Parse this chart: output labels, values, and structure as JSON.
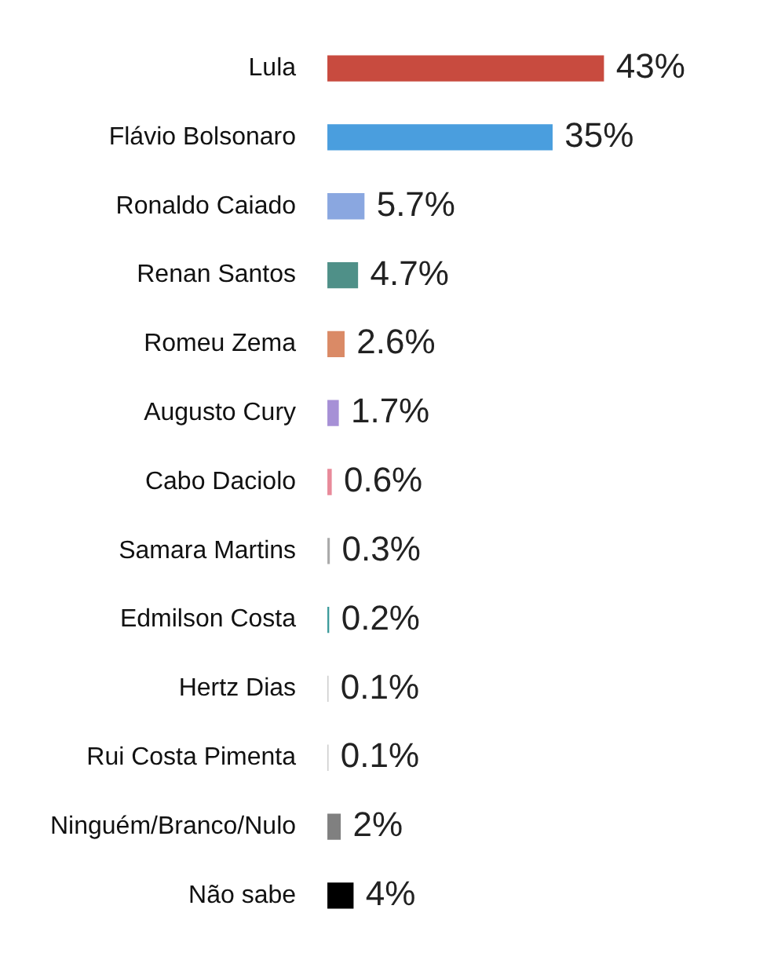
{
  "chart_data": {
    "type": "bar",
    "orientation": "horizontal",
    "categories": [
      "Lula",
      "Flávio Bolsonaro",
      "Ronaldo Caiado",
      "Renan Santos",
      "Romeu Zema",
      "Augusto Cury",
      "Cabo Daciolo",
      "Samara Martins",
      "Edmilson Costa",
      "Hertz Dias",
      "Rui Costa Pimenta",
      "Ninguém/Branco/Nulo",
      "Não sabe"
    ],
    "values": [
      43,
      35,
      5.7,
      4.7,
      2.6,
      1.7,
      0.6,
      0.3,
      0.2,
      0.1,
      0.1,
      2,
      4
    ],
    "value_labels": [
      "43%",
      "35%",
      "5.7%",
      "4.7%",
      "2.6%",
      "1.7%",
      "0.6%",
      "0.3%",
      "0.2%",
      "0.1%",
      "0.1%",
      "2%",
      "4%"
    ],
    "colors": [
      "#c84b3f",
      "#4a9ede",
      "#8aa7e0",
      "#4f9088",
      "#da8a66",
      "#a690d6",
      "#e88a9a",
      "#aaaaaa",
      "#3a9a9a",
      "#cccccc",
      "#cccccc",
      "#808080",
      "#000000"
    ]
  }
}
